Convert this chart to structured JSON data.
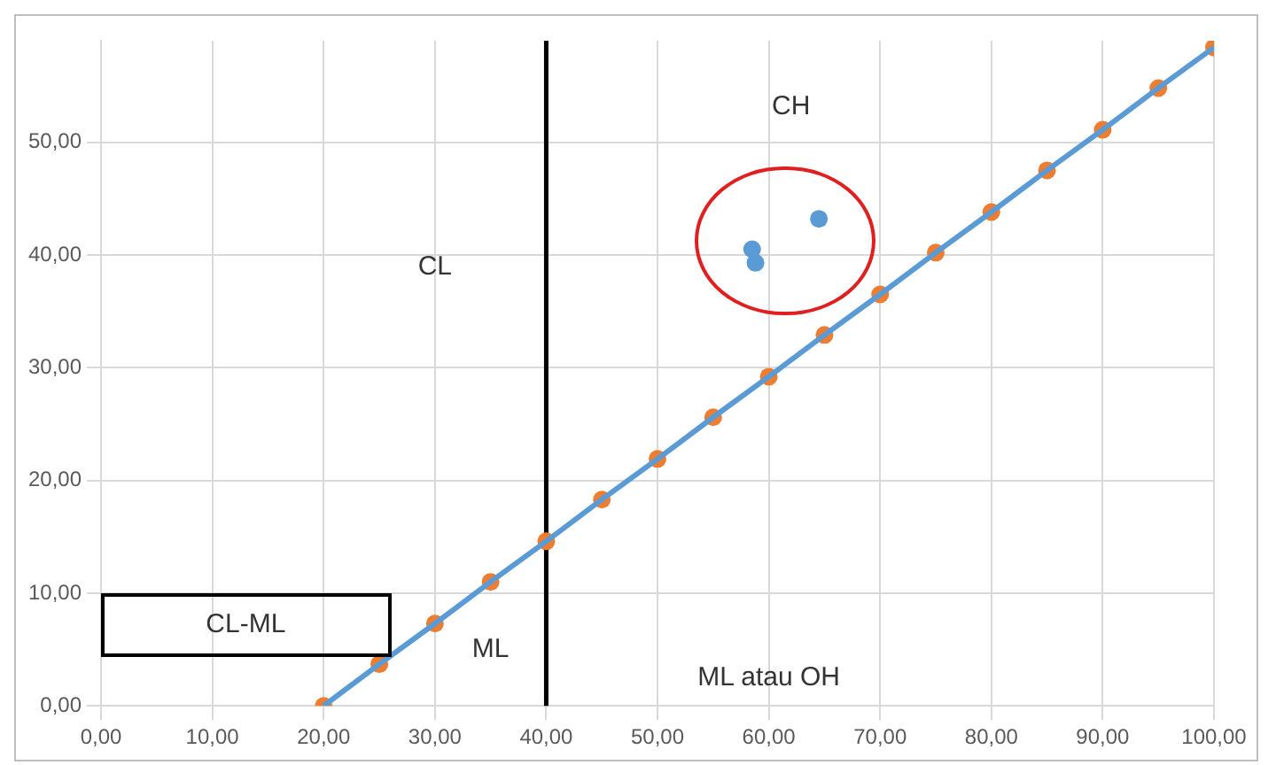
{
  "chart_data": {
    "type": "scatter",
    "x": [
      20,
      25,
      30,
      35,
      40,
      45,
      50,
      55,
      60,
      65,
      70,
      75,
      80,
      85,
      90,
      95,
      100
    ],
    "series": [
      {
        "type": "line",
        "color": "#5b9bd5",
        "marker": "none",
        "values": [
          0,
          3.7,
          7.3,
          11.0,
          14.6,
          18.3,
          21.9,
          25.6,
          29.2,
          32.9,
          36.5,
          40.2,
          43.8,
          47.5,
          51.1,
          54.8,
          58.4
        ]
      },
      {
        "color": "#ed7d31",
        "marker": "circle",
        "values": [
          0,
          3.7,
          7.3,
          11.0,
          14.6,
          18.3,
          21.9,
          25.6,
          29.2,
          32.9,
          36.5,
          40.2,
          43.8,
          47.5,
          51.1,
          54.8,
          58.4
        ]
      },
      {
        "color": "#5b9bd5",
        "marker": "circle",
        "x": [
          58.5,
          58.8,
          64.5
        ],
        "values": [
          40.5,
          39.3,
          43.2
        ]
      }
    ],
    "xlim": [
      0,
      100
    ],
    "xticks": [
      {
        "value": 0,
        "label": "0,00"
      },
      {
        "value": 10,
        "label": "10,00"
      },
      {
        "value": 20,
        "label": "20,00"
      },
      {
        "value": 30,
        "label": "30,00"
      },
      {
        "value": 40,
        "label": "40,00"
      },
      {
        "value": 50,
        "label": "50,00"
      },
      {
        "value": 60,
        "label": "60,00"
      },
      {
        "value": 70,
        "label": "70,00"
      },
      {
        "value": 80,
        "label": "80,00"
      },
      {
        "value": 90,
        "label": "90,00"
      },
      {
        "value": 100,
        "label": "100,00"
      }
    ],
    "ylim": [
      0,
      59
    ],
    "yticks": [
      {
        "value": 0,
        "label": "0,00"
      },
      {
        "value": 10,
        "label": "10,00"
      },
      {
        "value": 20,
        "label": "20,00"
      },
      {
        "value": 30,
        "label": "30,00"
      },
      {
        "value": 40,
        "label": "40,00"
      },
      {
        "value": 50,
        "label": "50,00"
      }
    ],
    "grid": true,
    "ref_lines": [
      {
        "axis": "x",
        "value": 40,
        "color": "#000000"
      }
    ],
    "annotations": [
      "CH",
      "CL",
      "ML",
      "ML atau OH",
      "CL-ML"
    ]
  }
}
